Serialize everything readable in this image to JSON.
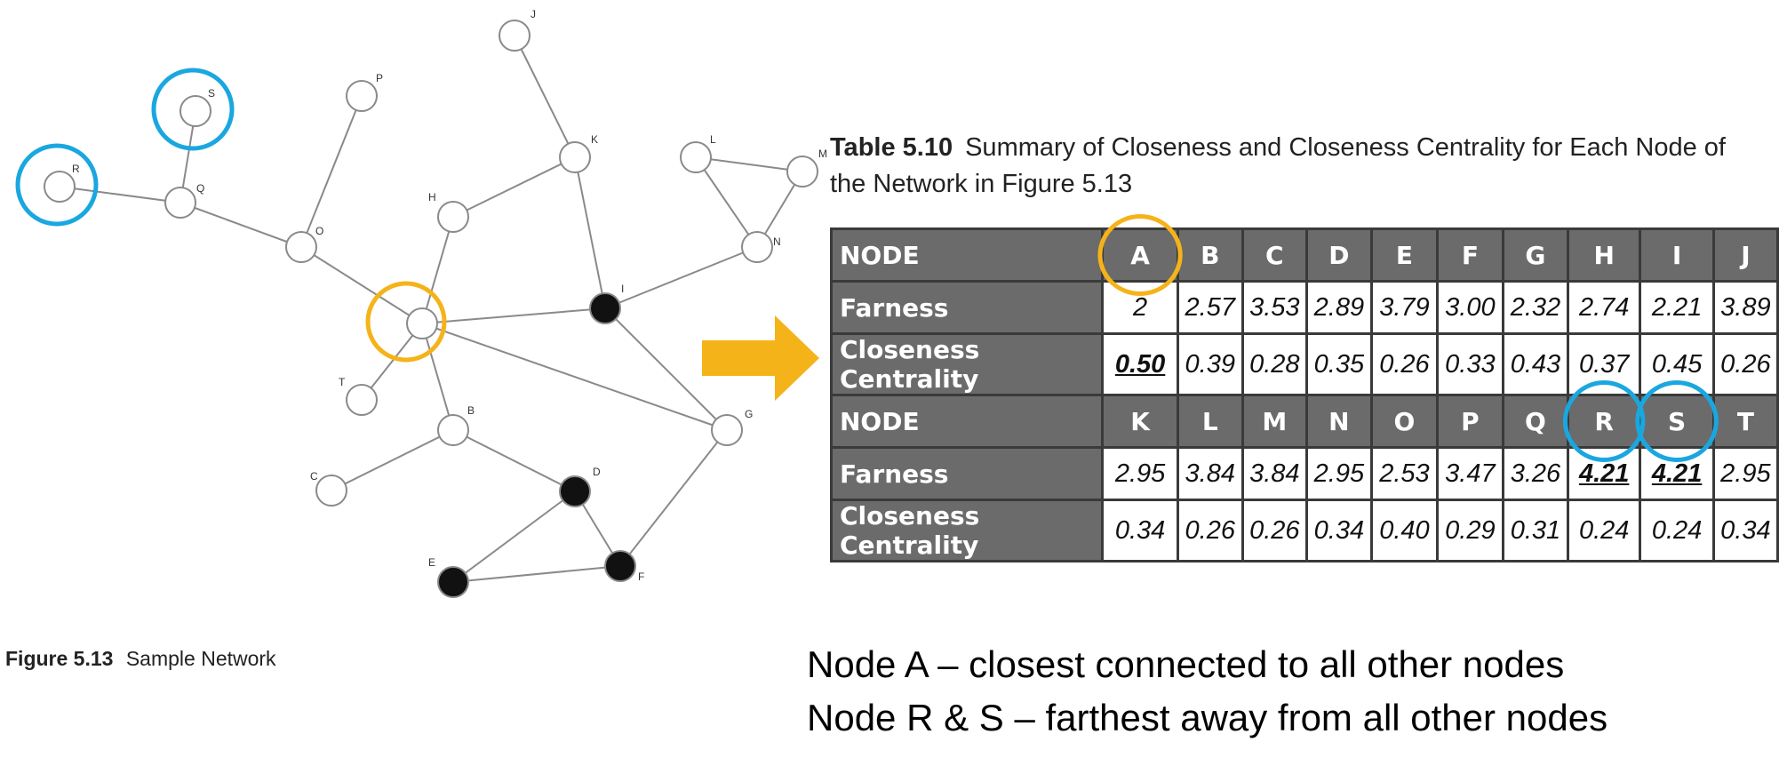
{
  "colors": {
    "accent_orange": "#f5b31a",
    "accent_blue": "#1aa7e0",
    "header_gray": "#6b6b6b",
    "edge": "#8a8a8a"
  },
  "figure": {
    "caption_number": "Figure 5.13",
    "caption_text": "Sample Network",
    "nodes": [
      {
        "id": "A",
        "label": "",
        "filled": false,
        "highlight": "orange"
      },
      {
        "id": "B",
        "label": "B",
        "filled": false
      },
      {
        "id": "C",
        "label": "C",
        "filled": false
      },
      {
        "id": "D",
        "label": "D",
        "filled": true
      },
      {
        "id": "E",
        "label": "E",
        "filled": true
      },
      {
        "id": "F",
        "label": "F",
        "filled": true
      },
      {
        "id": "G",
        "label": "G",
        "filled": false
      },
      {
        "id": "H",
        "label": "H",
        "filled": false
      },
      {
        "id": "I",
        "label": "I",
        "filled": true
      },
      {
        "id": "J",
        "label": "J",
        "filled": false
      },
      {
        "id": "K",
        "label": "K",
        "filled": false
      },
      {
        "id": "L",
        "label": "L",
        "filled": false
      },
      {
        "id": "M",
        "label": "M",
        "filled": false
      },
      {
        "id": "N",
        "label": "N",
        "filled": false
      },
      {
        "id": "O",
        "label": "O",
        "filled": false
      },
      {
        "id": "P",
        "label": "P",
        "filled": false
      },
      {
        "id": "Q",
        "label": "Q",
        "filled": false
      },
      {
        "id": "R",
        "label": "R",
        "filled": false,
        "highlight": "blue"
      },
      {
        "id": "S",
        "label": "S",
        "filled": false,
        "highlight": "blue"
      },
      {
        "id": "T",
        "label": "T",
        "filled": false
      }
    ],
    "edges": [
      [
        "R",
        "Q"
      ],
      [
        "S",
        "Q"
      ],
      [
        "Q",
        "O"
      ],
      [
        "O",
        "P"
      ],
      [
        "O",
        "A"
      ],
      [
        "A",
        "H"
      ],
      [
        "H",
        "K"
      ],
      [
        "K",
        "J"
      ],
      [
        "K",
        "I"
      ],
      [
        "A",
        "I"
      ],
      [
        "A",
        "T"
      ],
      [
        "A",
        "B"
      ],
      [
        "A",
        "G"
      ],
      [
        "B",
        "C"
      ],
      [
        "B",
        "D"
      ],
      [
        "I",
        "G"
      ],
      [
        "I",
        "N"
      ],
      [
        "N",
        "L"
      ],
      [
        "N",
        "M"
      ],
      [
        "L",
        "M"
      ],
      [
        "D",
        "E"
      ],
      [
        "D",
        "F"
      ],
      [
        "E",
        "F"
      ],
      [
        "G",
        "F"
      ]
    ]
  },
  "table": {
    "caption_number": "Table 5.10",
    "caption_text": "Summary of Closeness and Closeness Centrality for Each Node of the Network in Figure 5.13",
    "blocks": [
      {
        "header_label": "NODE",
        "nodes": [
          "A",
          "B",
          "C",
          "D",
          "E",
          "F",
          "G",
          "H",
          "I",
          "J"
        ],
        "rows": [
          {
            "label": "Farness",
            "values": [
              "2",
              "2.57",
              "3.53",
              "2.89",
              "3.79",
              "3.00",
              "2.32",
              "2.74",
              "2.21",
              "3.89"
            ]
          },
          {
            "label": "Closeness Centrality",
            "values": [
              "0.50",
              "0.39",
              "0.28",
              "0.35",
              "0.26",
              "0.33",
              "0.43",
              "0.37",
              "0.45",
              "0.26"
            ]
          }
        ]
      },
      {
        "header_label": "NODE",
        "nodes": [
          "K",
          "L",
          "M",
          "N",
          "O",
          "P",
          "Q",
          "R",
          "S",
          "T"
        ],
        "rows": [
          {
            "label": "Farness",
            "values": [
              "2.95",
              "3.84",
              "3.84",
              "2.95",
              "2.53",
              "3.47",
              "3.26",
              "4.21",
              "4.21",
              "2.95"
            ]
          },
          {
            "label": "Closeness Centrality",
            "values": [
              "0.34",
              "0.26",
              "0.26",
              "0.34",
              "0.40",
              "0.29",
              "0.31",
              "0.24",
              "0.24",
              "0.34"
            ]
          }
        ]
      }
    ],
    "emphasized_values": [
      {
        "block": 0,
        "row": 1,
        "col": 0
      },
      {
        "block": 1,
        "row": 0,
        "col": 7
      },
      {
        "block": 1,
        "row": 0,
        "col": 8
      }
    ],
    "highlighted_headers": [
      {
        "block": 0,
        "col": 0,
        "color": "orange"
      },
      {
        "block": 1,
        "col": 7,
        "color": "blue"
      },
      {
        "block": 1,
        "col": 8,
        "color": "blue"
      }
    ]
  },
  "takeaways": [
    "Node A – closest connected to all other nodes",
    "Node R & S – farthest away from all other nodes"
  ]
}
